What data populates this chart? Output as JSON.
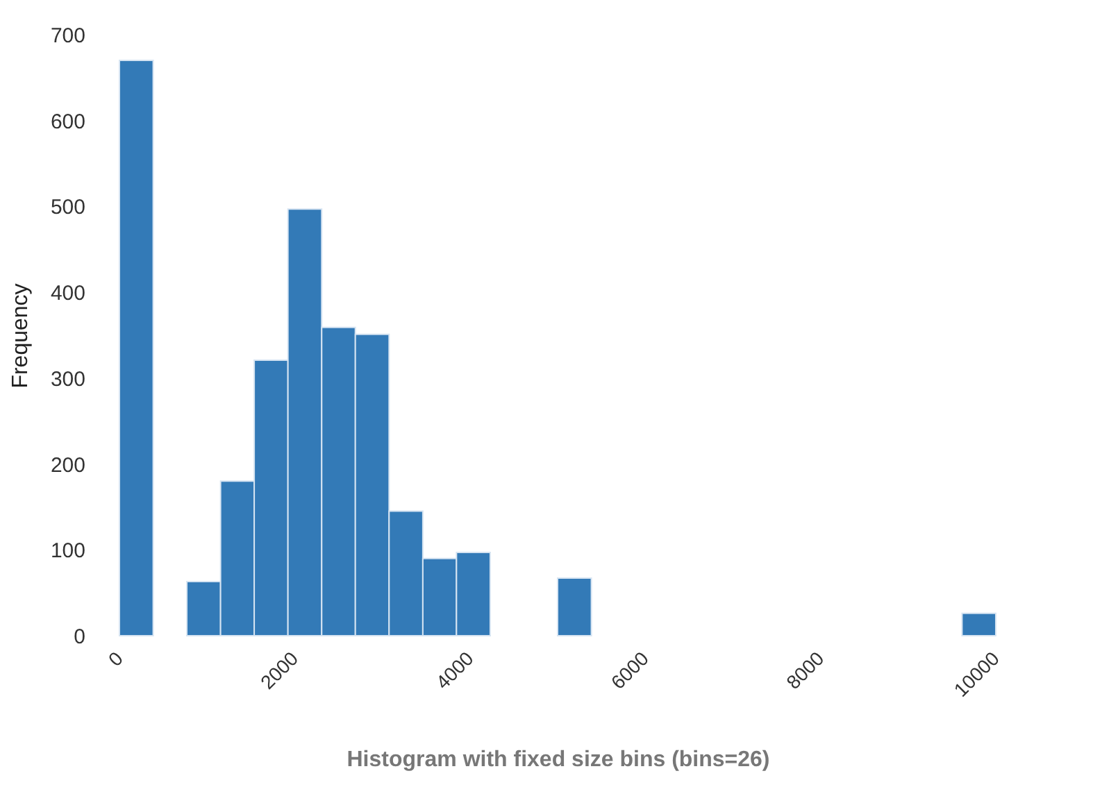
{
  "chart_data": {
    "type": "histogram",
    "xlabel": "Histogram with fixed size bins (bins=26)",
    "ylabel": "Frequency",
    "bins": [
      0,
      385,
      769,
      1154,
      1538,
      1923,
      2308,
      2692,
      3077,
      3462,
      3846,
      4231,
      4615,
      5000,
      5385,
      5769,
      6154,
      6538,
      6923,
      7308,
      7692,
      8077,
      8462,
      8846,
      9231,
      9615,
      10000
    ],
    "values": [
      670,
      0,
      63,
      180,
      321,
      497,
      359,
      351,
      145,
      90,
      97,
      0,
      0,
      67,
      0,
      0,
      0,
      0,
      0,
      0,
      0,
      0,
      0,
      0,
      0,
      26
    ],
    "color": "#337ab7",
    "xlim": [
      0,
      10000
    ],
    "xticks": [
      0,
      2000,
      4000,
      6000,
      8000,
      10000
    ],
    "ylim": [
      0,
      700
    ],
    "yticks": [
      0,
      100,
      200,
      300,
      400,
      500,
      600,
      700
    ],
    "grid": false
  }
}
